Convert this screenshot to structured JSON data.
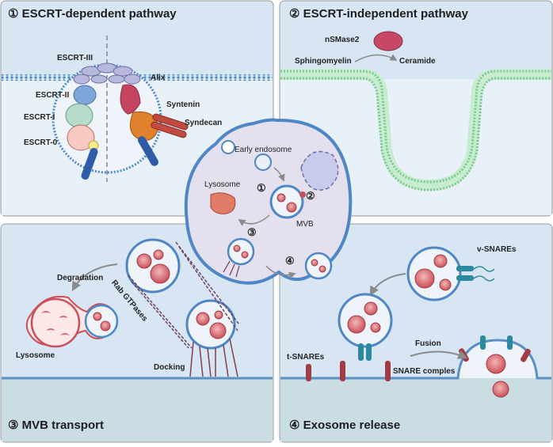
{
  "panels": {
    "p1": {
      "title": "① ESCRT-dependent pathway",
      "labels": {
        "escrt3": "ESCRT-III",
        "escrt2": "ESCRT-II",
        "escrt1": "ESCRT-I",
        "escrt0": "ESCRT-0",
        "alix": "Alix",
        "syntenin": "Syntenin",
        "syndecan": "Syndecan"
      }
    },
    "p2": {
      "title": "② ESCRT-independent pathway",
      "labels": {
        "nsmase2": "nSMase2",
        "sphingomyelin": "Sphingomyelin",
        "ceramide": "Ceramide"
      }
    },
    "p3": {
      "title": "③ MVB transport",
      "labels": {
        "degradation": "Degradation",
        "rab": "Rab GTPases",
        "lysosome": "Lysosome",
        "docking": "Docking"
      }
    },
    "p4": {
      "title": "④ Exosome release",
      "labels": {
        "vsnares": "v-SNAREs",
        "tsnares": "t-SNAREs",
        "fusion": "Fusion",
        "snare_complex": "SNARE comples"
      }
    }
  },
  "center": {
    "labels": {
      "early_endosome": "Early endosome",
      "lysosome": "Lysosome",
      "mvb": "MVB",
      "n1": "①",
      "n2": "②",
      "n3": "③",
      "n4": "④"
    }
  },
  "colors": {
    "panel_bg": "#d3e3f2",
    "panel_bg_light": "#e2edf6",
    "membrane": "#5b8fc2",
    "mvb_blue": "#4f86c6",
    "vesicle_red": "#c9505a",
    "cell_fill": "#e4e0ee"
  }
}
